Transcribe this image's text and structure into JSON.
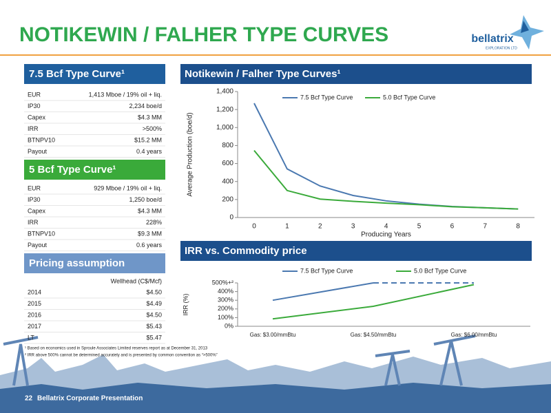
{
  "header": {
    "title": "NOTIKEWIN / FALHER TYPE CURVES",
    "logo": "bellatrix",
    "logo_sub": "EXPLORATION LTD"
  },
  "panels": [
    {
      "title": "7.5 Bcf Type Curve¹",
      "rows": [
        [
          "EUR",
          "1,413 Mboe / 19% oil + liq."
        ],
        [
          "IP30",
          "2,234 boe/d"
        ],
        [
          "Capex",
          "$4.3 MM"
        ],
        [
          "IRR",
          ">500%"
        ],
        [
          "BTNPV10",
          "$15.2 MM"
        ],
        [
          "Payout",
          "0.4 years"
        ]
      ]
    },
    {
      "title": "5 Bcf Type Curve¹",
      "rows": [
        [
          "EUR",
          "929 Mboe / 19% oil + liq."
        ],
        [
          "IP30",
          "1,250 boe/d"
        ],
        [
          "Capex",
          "$4.3 MM"
        ],
        [
          "IRR",
          "228%"
        ],
        [
          "BTNPV10",
          "$9.3 MM"
        ],
        [
          "Payout",
          "0.6 years"
        ]
      ]
    },
    {
      "title": "Pricing assumption",
      "column_header": "Wellhead (C$/Mcf)",
      "rows": [
        [
          "2014",
          "$4.50"
        ],
        [
          "2015",
          "$4.49"
        ],
        [
          "2016",
          "$4.50"
        ],
        [
          "2017",
          "$5.43"
        ],
        [
          "LT",
          "$5.47"
        ]
      ]
    }
  ],
  "chart_data": [
    {
      "type": "line",
      "title": "Notikewin / Falher Type Curves¹",
      "xlabel": "Producing Years",
      "ylabel": "Average Production (boe/d)",
      "categories": [
        "0",
        "1",
        "2",
        "3",
        "4",
        "5",
        "6",
        "7",
        "8"
      ],
      "series": [
        {
          "name": "7.5 Bcf Type Curve",
          "color": "#4a78b0",
          "values": [
            1270,
            540,
            350,
            245,
            185,
            148,
            122,
            108,
            95
          ]
        },
        {
          "name": "5.0 Bcf Type Curve",
          "color": "#3aaa3a",
          "values": [
            745,
            300,
            205,
            180,
            160,
            142,
            120,
            108,
            95
          ]
        }
      ],
      "ylim": [
        0,
        1400
      ],
      "yticks": [
        0,
        200,
        400,
        600,
        800,
        {
          "value": 1000,
          "label": "1,000"
        },
        {
          "value": 1200,
          "label": "1,200"
        },
        {
          "value": 1400,
          "label": "1,400"
        }
      ],
      "grid": false,
      "legend": "top"
    },
    {
      "type": "line",
      "title": "IRR vs. Commodity price",
      "ylabel": "IRR (%)",
      "categories": [
        "Gas: $3.00/mmBtu",
        "Gas: $4.50/mmBtu",
        "Gas: $6.00/mmBtu"
      ],
      "series": [
        {
          "name": "7.5 Bcf Type Curve",
          "color": "#4a78b0",
          "values": [
            300,
            500,
            500
          ],
          "dashed_after": 1
        },
        {
          "name": "5.0 Bcf Type Curve",
          "color": "#3aaa3a",
          "values": [
            85,
            230,
            480
          ]
        }
      ],
      "ylim": [
        0,
        500
      ],
      "yticks": [
        {
          "value": 0,
          "label": "0%"
        },
        {
          "value": 100,
          "label": "100%"
        },
        {
          "value": 200,
          "label": "200%"
        },
        {
          "value": 300,
          "label": "300%"
        },
        {
          "value": 400,
          "label": "400%"
        },
        {
          "value": 500,
          "label": "500%+²"
        }
      ],
      "grid": false,
      "legend": "top"
    }
  ],
  "footnotes": [
    "¹ Based on economics used in Sproule Associates Limited reserves report as at December 31, 2013",
    "² IRR above 500% cannot be determined accurately and is presented by common convention as “>500%”"
  ],
  "footer": {
    "page": "22",
    "text": "Bellatrix Corporate Presentation"
  }
}
